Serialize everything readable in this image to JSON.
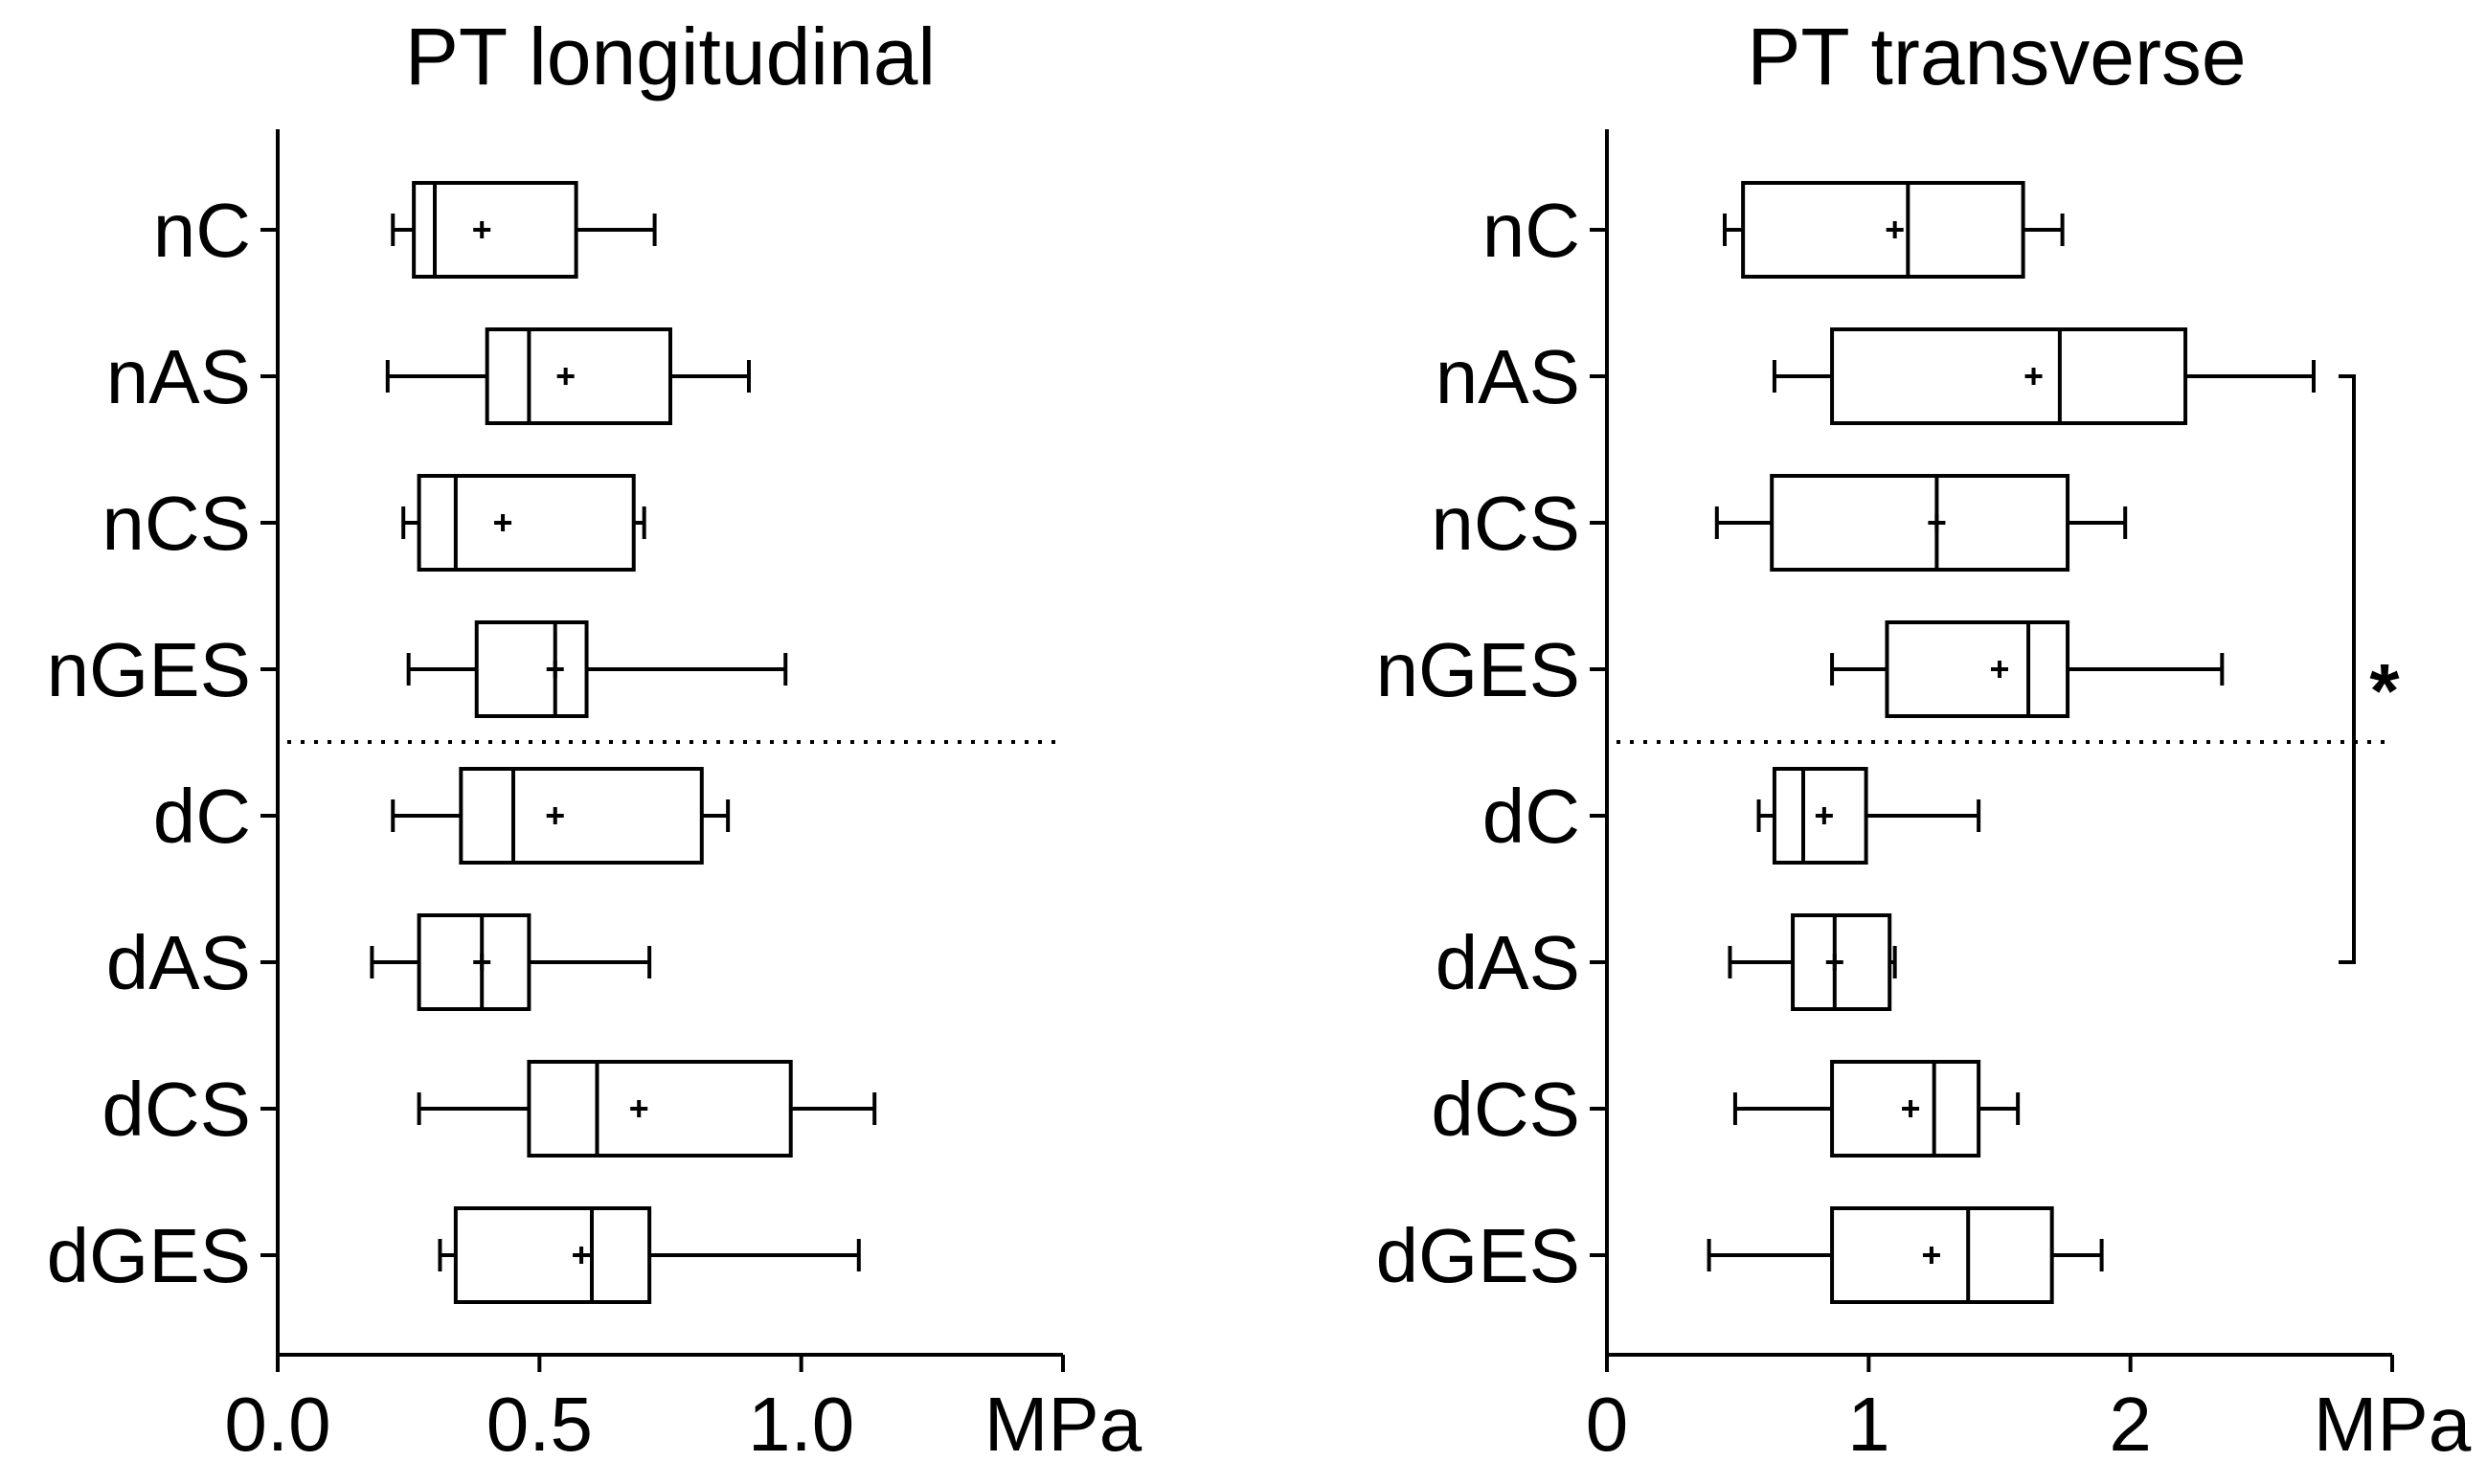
{
  "chart_data": [
    {
      "type": "boxplot",
      "title": "PT longitudinal",
      "xlabel": "MPa",
      "xlim": [
        0,
        1.5
      ],
      "xticks": [
        "0.0",
        "0.5",
        "1.0"
      ],
      "xtick_values": [
        0,
        0.5,
        1.0
      ],
      "orientation": "horizontal",
      "grid": false,
      "divider": "dotted line between nGES and dC",
      "categories": [
        "nC",
        "nAS",
        "nCS",
        "nGES",
        "dC",
        "dAS",
        "dCS",
        "dGES"
      ],
      "boxes": [
        {
          "label": "nC",
          "min": 0.22,
          "q1": 0.26,
          "median": 0.3,
          "q3": 0.57,
          "max": 0.72,
          "mean": 0.39
        },
        {
          "label": "nAS",
          "min": 0.21,
          "q1": 0.4,
          "median": 0.48,
          "q3": 0.75,
          "max": 0.9,
          "mean": 0.55
        },
        {
          "label": "nCS",
          "min": 0.24,
          "q1": 0.27,
          "median": 0.34,
          "q3": 0.68,
          "max": 0.7,
          "mean": 0.43
        },
        {
          "label": "nGES",
          "min": 0.25,
          "q1": 0.38,
          "median": 0.53,
          "q3": 0.59,
          "max": 0.97,
          "mean": 0.53
        },
        {
          "label": "dC",
          "min": 0.22,
          "q1": 0.35,
          "median": 0.45,
          "q3": 0.81,
          "max": 0.86,
          "mean": 0.53
        },
        {
          "label": "dAS",
          "min": 0.18,
          "q1": 0.27,
          "median": 0.39,
          "q3": 0.48,
          "max": 0.71,
          "mean": 0.39
        },
        {
          "label": "dCS",
          "min": 0.27,
          "q1": 0.48,
          "median": 0.61,
          "q3": 0.98,
          "max": 1.14,
          "mean": 0.69
        },
        {
          "label": "dGES",
          "min": 0.31,
          "q1": 0.34,
          "median": 0.6,
          "q3": 0.71,
          "max": 1.11,
          "mean": 0.58
        }
      ]
    },
    {
      "type": "boxplot",
      "title": "PT transverse",
      "xlabel": "MPa",
      "xlim": [
        0,
        3
      ],
      "xticks": [
        "0",
        "1",
        "2"
      ],
      "xtick_values": [
        0,
        1,
        2
      ],
      "orientation": "horizontal",
      "grid": false,
      "divider": "dotted line between nGES and dC",
      "categories": [
        "nC",
        "nAS",
        "nCS",
        "nGES",
        "dC",
        "dAS",
        "dCS",
        "dGES"
      ],
      "boxes": [
        {
          "label": "nC",
          "min": 0.45,
          "q1": 0.52,
          "median": 1.15,
          "q3": 1.59,
          "max": 1.74,
          "mean": 1.1
        },
        {
          "label": "nAS",
          "min": 0.64,
          "q1": 0.86,
          "median": 1.73,
          "q3": 2.21,
          "max": 2.7,
          "mean": 1.63
        },
        {
          "label": "nCS",
          "min": 0.42,
          "q1": 0.63,
          "median": 1.26,
          "q3": 1.76,
          "max": 1.98,
          "mean": 1.26
        },
        {
          "label": "nGES",
          "min": 0.86,
          "q1": 1.07,
          "median": 1.61,
          "q3": 1.76,
          "max": 2.35,
          "mean": 1.5
        },
        {
          "label": "dC",
          "min": 0.58,
          "q1": 0.64,
          "median": 0.75,
          "q3": 0.99,
          "max": 1.42,
          "mean": 0.83
        },
        {
          "label": "dAS",
          "min": 0.47,
          "q1": 0.71,
          "median": 0.87,
          "q3": 1.08,
          "max": 1.1,
          "mean": 0.87
        },
        {
          "label": "dCS",
          "min": 0.49,
          "q1": 0.86,
          "median": 1.25,
          "q3": 1.42,
          "max": 1.57,
          "mean": 1.16
        },
        {
          "label": "dGES",
          "min": 0.39,
          "q1": 0.86,
          "median": 1.38,
          "q3": 1.7,
          "max": 1.89,
          "mean": 1.24
        }
      ],
      "significance": {
        "from": "nAS",
        "to": "dAS",
        "label": "*"
      }
    }
  ]
}
